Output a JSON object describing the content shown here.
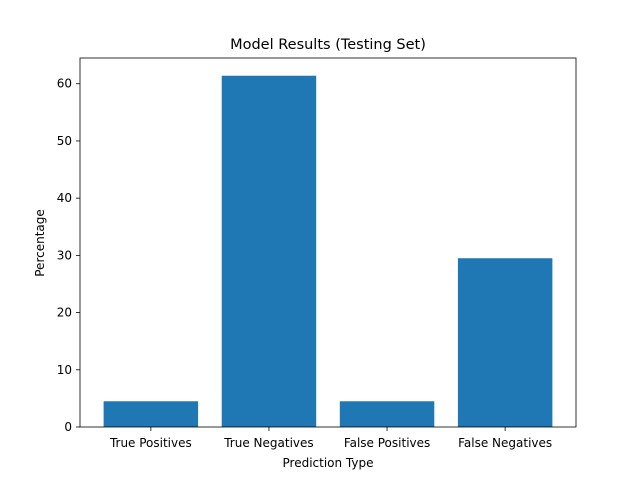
{
  "chart_data": {
    "type": "bar",
    "title": "Model Results (Testing Set)",
    "xlabel": "Prediction Type",
    "ylabel": "Percentage",
    "categories": [
      "True Positives",
      "True Negatives",
      "False Positives",
      "False Negatives"
    ],
    "values": [
      4.5,
      61.4,
      4.5,
      29.5
    ],
    "ylim": [
      0,
      64.5
    ],
    "yticks": [
      0,
      10,
      20,
      30,
      40,
      50,
      60
    ],
    "bar_color": "#1f77b4",
    "grid": false,
    "legend": "none"
  }
}
